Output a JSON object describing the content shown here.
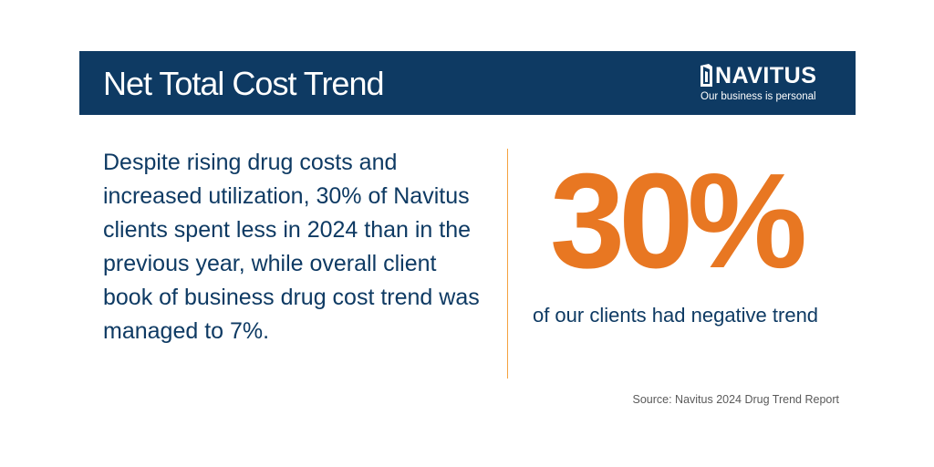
{
  "header": {
    "title": "Net Total Cost Trend",
    "background_color": "#0e3a63"
  },
  "logo": {
    "icon": "navitus-mark-icon",
    "name": "NAVITUS",
    "tagline": "Our business is personal"
  },
  "main": {
    "body_text": "Despite rising drug costs and increased utilization, 30% of Navitus clients spent less in 2024 than in the previous year, while overall client book of business drug cost trend was managed to 7%.",
    "body_text_color": "#0e3a63"
  },
  "stat": {
    "value": "30%",
    "caption": "of our clients had negative trend",
    "color": "#e87722",
    "divider_color": "#f5a340"
  },
  "footer": {
    "source": "Source: Navitus 2024 Drug Trend Report"
  }
}
